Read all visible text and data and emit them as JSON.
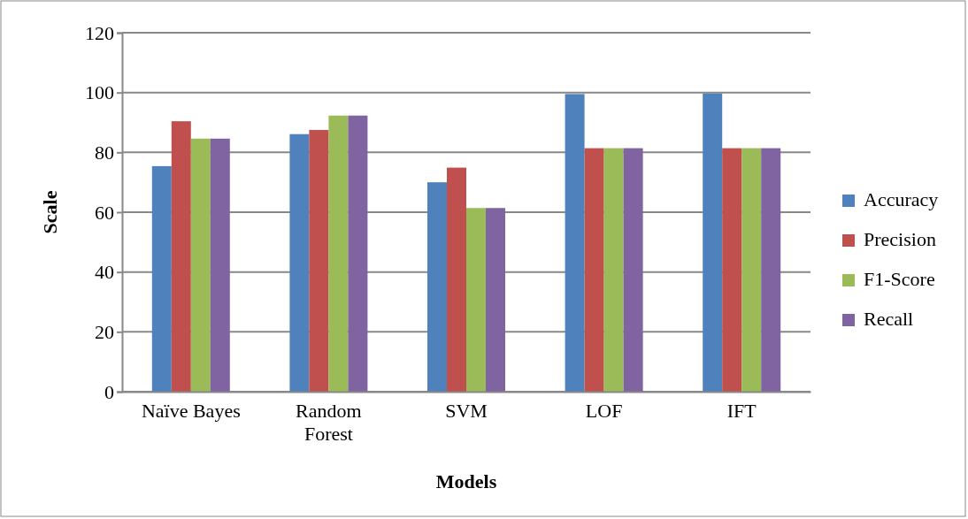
{
  "chart_data": {
    "type": "bar",
    "xlabel": "Models",
    "ylabel": "Scale",
    "categories": [
      "Naïve Bayes",
      "Random Forest",
      "SVM",
      "LOF",
      "IFT"
    ],
    "series": [
      {
        "name": "Accuracy",
        "color": "#4f81bd",
        "values": [
          75.4,
          86.1,
          70.0,
          99.5,
          99.7
        ]
      },
      {
        "name": "Precision",
        "color": "#c0504d",
        "values": [
          90.4,
          87.5,
          74.9,
          81.4,
          81.4
        ]
      },
      {
        "name": "F1-Score",
        "color": "#9bbb59",
        "values": [
          84.6,
          92.3,
          61.4,
          81.4,
          81.4
        ]
      },
      {
        "name": "Recall",
        "color": "#8064a2",
        "values": [
          84.6,
          92.3,
          61.4,
          81.4,
          81.4
        ]
      }
    ],
    "ylim": [
      0,
      120
    ],
    "yticks": [
      0,
      20,
      40,
      60,
      80,
      100,
      120
    ],
    "grid": "y",
    "legend": "right"
  }
}
